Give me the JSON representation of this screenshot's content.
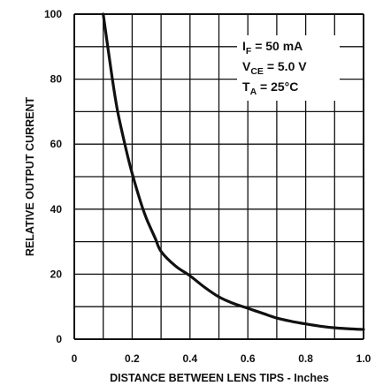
{
  "chart_data": {
    "type": "line",
    "xlabel": "DISTANCE BETWEEN LENS TIPS - Inches",
    "ylabel": "RELATIVE OUTPUT CURRENT",
    "xlim": [
      0,
      1.0
    ],
    "ylim": [
      0,
      100
    ],
    "x_ticks": [
      "0",
      "0.2",
      "0.4",
      "0.6",
      "0.8",
      "1.0"
    ],
    "y_ticks": [
      "0",
      "20",
      "40",
      "60",
      "80",
      "100"
    ],
    "grid": true,
    "minor_grid_step_x": 0.1,
    "minor_grid_step_y": 10,
    "conditions": [
      {
        "main": "I",
        "sub": "F",
        "rest": " = 50 mA"
      },
      {
        "main": "V",
        "sub": "CE",
        "rest": " = 5.0 V"
      },
      {
        "main": "T",
        "sub": "A",
        "rest": " = 25°C"
      }
    ],
    "series": [
      {
        "x": [
          0.1,
          0.13,
          0.15,
          0.18,
          0.2,
          0.23,
          0.25,
          0.28,
          0.3,
          0.35,
          0.4,
          0.45,
          0.5,
          0.55,
          0.6,
          0.65,
          0.7,
          0.75,
          0.8,
          0.85,
          0.9,
          0.95,
          1.0
        ],
        "y": [
          100,
          81,
          70,
          58,
          51,
          42,
          37,
          31,
          27,
          22.5,
          19.5,
          16,
          13,
          11,
          9.5,
          8,
          6.5,
          5.5,
          4.7,
          4,
          3.5,
          3.2,
          3
        ]
      }
    ],
    "colors": {
      "curve": "#111111",
      "grid": "#111111",
      "background": "#ffffff"
    }
  }
}
